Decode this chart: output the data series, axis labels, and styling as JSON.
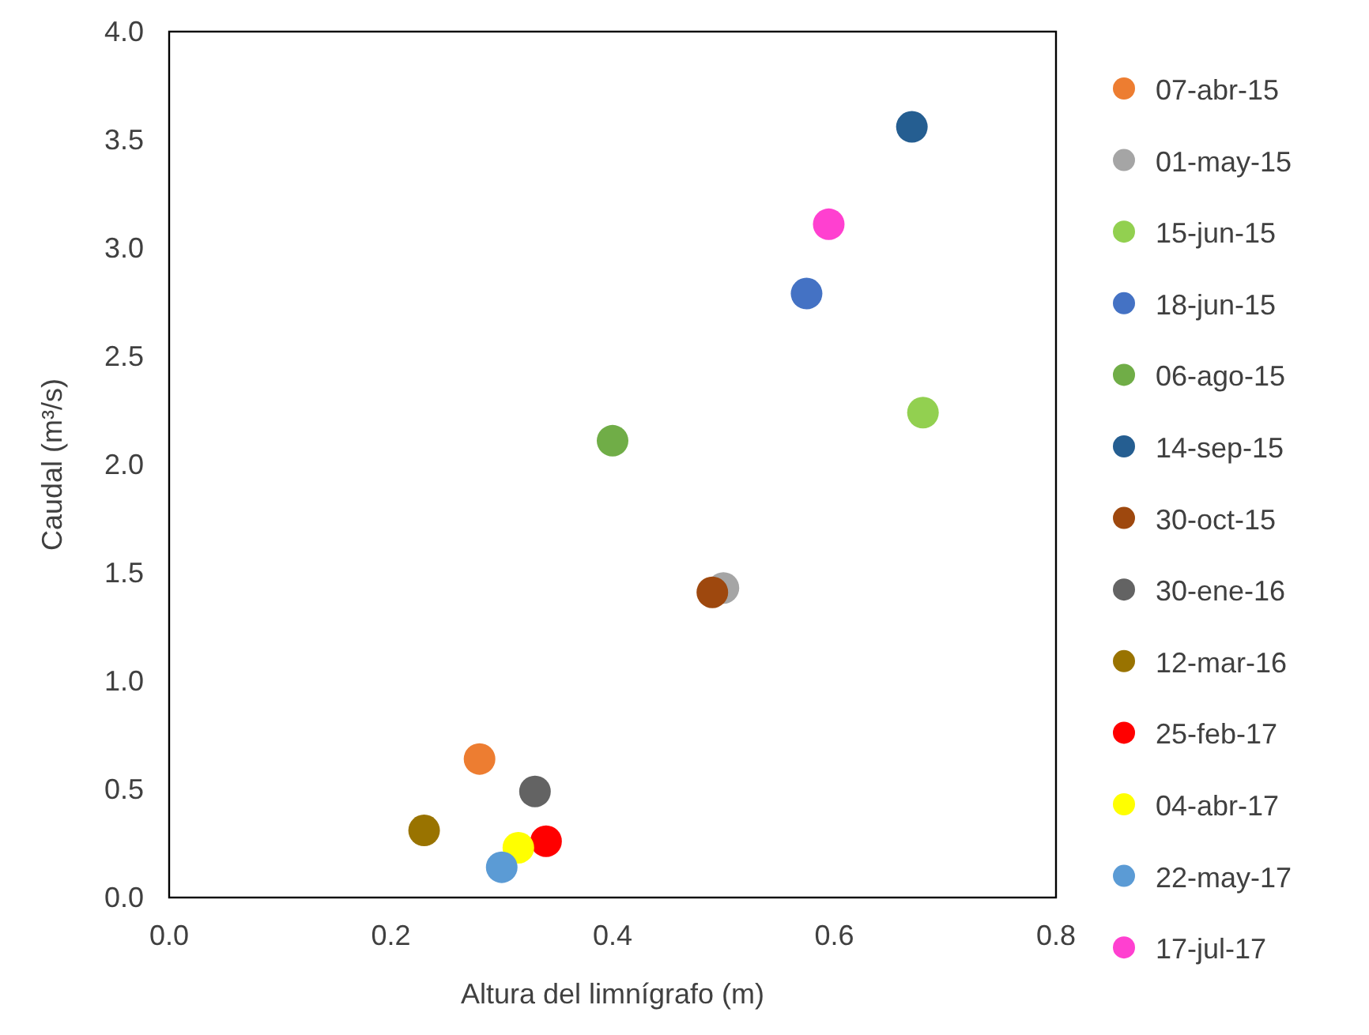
{
  "chart_data": {
    "type": "scatter",
    "xlabel": "Altura del limnígrafo (m)",
    "ylabel": "Caudal (m³/s)",
    "xlim": [
      0,
      0.8
    ],
    "xticks": [
      {
        "value": 0,
        "label": "0.0"
      },
      {
        "value": 0.2,
        "label": "0.2"
      },
      {
        "value": 0.4,
        "label": "0.4"
      },
      {
        "value": 0.6,
        "label": "0.6"
      },
      {
        "value": 0.8,
        "label": "0.8"
      }
    ],
    "ylim": [
      0,
      4
    ],
    "yticks": [
      {
        "value": 0,
        "label": "0.0"
      },
      {
        "value": 0.5,
        "label": "0.5"
      },
      {
        "value": 1,
        "label": "1.0"
      },
      {
        "value": 1.5,
        "label": "1.5"
      },
      {
        "value": 2,
        "label": "2.0"
      },
      {
        "value": 2.5,
        "label": "2.5"
      },
      {
        "value": 3,
        "label": "3.0"
      },
      {
        "value": 3.5,
        "label": "3.5"
      },
      {
        "value": 4,
        "label": "4.0"
      }
    ],
    "grid": false,
    "legend": "right",
    "marker": "circle",
    "series": [
      {
        "name": "07-abr-15",
        "color": "#ed7d31",
        "x": [
          0.28
        ],
        "values": [
          0.64
        ]
      },
      {
        "name": "01-may-15",
        "color": "#a5a5a5",
        "x": [
          0.5
        ],
        "values": [
          1.43
        ]
      },
      {
        "name": "15-jun-15",
        "color": "#92d050",
        "x": [
          0.68
        ],
        "values": [
          2.24
        ]
      },
      {
        "name": "18-jun-15",
        "color": "#4472c4",
        "x": [
          0.575
        ],
        "values": [
          2.79
        ]
      },
      {
        "name": "06-ago-15",
        "color": "#70ad47",
        "x": [
          0.4
        ],
        "values": [
          2.11
        ]
      },
      {
        "name": "14-sep-15",
        "color": "#255e91",
        "x": [
          0.67
        ],
        "values": [
          3.56
        ]
      },
      {
        "name": "30-oct-15",
        "color": "#9e480e",
        "x": [
          0.49
        ],
        "values": [
          1.41
        ]
      },
      {
        "name": "30-ene-16",
        "color": "#636363",
        "x": [
          0.33
        ],
        "values": [
          0.49
        ]
      },
      {
        "name": "12-mar-16",
        "color": "#997300",
        "x": [
          0.23
        ],
        "values": [
          0.31
        ]
      },
      {
        "name": "25-feb-17",
        "color": "#ff0000",
        "x": [
          0.34
        ],
        "values": [
          0.26
        ]
      },
      {
        "name": "04-abr-17",
        "color": "#ffff00",
        "x": [
          0.315
        ],
        "values": [
          0.23
        ]
      },
      {
        "name": "22-may-17",
        "color": "#5b9bd5",
        "x": [
          0.3
        ],
        "values": [
          0.14
        ]
      },
      {
        "name": "17-jul-17",
        "color": "#ff40d0",
        "x": [
          0.595
        ],
        "values": [
          3.11
        ]
      }
    ]
  }
}
